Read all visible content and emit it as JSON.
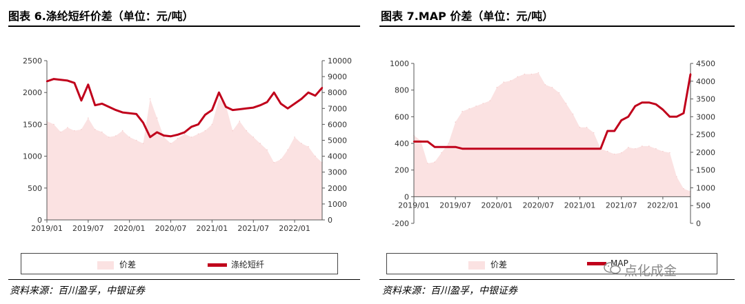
{
  "left": {
    "title": "图表 6.涤纶短纤价差（单位：元/吨）",
    "source": "资料来源：百川盈孚，中银证券",
    "legend": {
      "area": "价差",
      "line": "涤纶短纤"
    },
    "chart_data": {
      "type": "area+line",
      "x_ticks": [
        "2019/01",
        "2019/07",
        "2020/01",
        "2020/07",
        "2021/01",
        "2021/07",
        "2022/01"
      ],
      "y_left": {
        "ticks": [
          0,
          500,
          1000,
          1500,
          2000,
          2500
        ],
        "lim": [
          0,
          2500
        ]
      },
      "y_right": {
        "ticks": [
          0,
          1000,
          2000,
          3000,
          4000,
          5000,
          6000,
          7000,
          8000,
          9000,
          10000
        ],
        "lim": [
          0,
          10000
        ]
      },
      "x_range": [
        "2019/01",
        "2022/05"
      ],
      "series": [
        {
          "name": "价差",
          "axis": "left",
          "kind": "area",
          "x": [
            "2019/01",
            "2019/02",
            "2019/03",
            "2019/04",
            "2019/05",
            "2019/06",
            "2019/07",
            "2019/08",
            "2019/09",
            "2019/10",
            "2019/11",
            "2019/12",
            "2020/01",
            "2020/02",
            "2020/03",
            "2020/04",
            "2020/05",
            "2020/06",
            "2020/07",
            "2020/08",
            "2020/09",
            "2020/10",
            "2020/11",
            "2020/12",
            "2021/01",
            "2021/02",
            "2021/03",
            "2021/04",
            "2021/05",
            "2021/06",
            "2021/07",
            "2021/08",
            "2021/09",
            "2021/10",
            "2021/11",
            "2021/12",
            "2022/01",
            "2022/02",
            "2022/03",
            "2022/04",
            "2022/05"
          ],
          "values": [
            1550,
            1500,
            1380,
            1450,
            1400,
            1420,
            1600,
            1420,
            1380,
            1300,
            1320,
            1400,
            1300,
            1250,
            1200,
            1900,
            1600,
            1300,
            1200,
            1280,
            1350,
            1300,
            1350,
            1400,
            1500,
            1900,
            1800,
            1400,
            1550,
            1400,
            1300,
            1200,
            1100,
            900,
            950,
            1100,
            1300,
            1200,
            1150,
            1000,
            900
          ]
        },
        {
          "name": "涤纶短纤",
          "axis": "right",
          "kind": "line",
          "x": [
            "2019/01",
            "2019/02",
            "2019/03",
            "2019/04",
            "2019/05",
            "2019/06",
            "2019/07",
            "2019/08",
            "2019/09",
            "2019/10",
            "2019/11",
            "2019/12",
            "2020/01",
            "2020/02",
            "2020/03",
            "2020/04",
            "2020/05",
            "2020/06",
            "2020/07",
            "2020/08",
            "2020/09",
            "2020/10",
            "2020/11",
            "2020/12",
            "2021/01",
            "2021/02",
            "2021/03",
            "2021/04",
            "2021/05",
            "2021/06",
            "2021/07",
            "2021/08",
            "2021/09",
            "2021/10",
            "2021/11",
            "2021/12",
            "2022/01",
            "2022/02",
            "2022/03",
            "2022/04",
            "2022/05"
          ],
          "values": [
            8700,
            8850,
            8800,
            8750,
            8600,
            7500,
            8500,
            7200,
            7300,
            7100,
            6900,
            6750,
            6700,
            6650,
            6100,
            5200,
            5500,
            5300,
            5250,
            5350,
            5500,
            5850,
            6000,
            6600,
            6900,
            8000,
            7100,
            6900,
            6950,
            7000,
            7050,
            7200,
            7400,
            8000,
            7300,
            7000,
            7300,
            7600,
            8000,
            7800,
            8300
          ]
        }
      ]
    }
  },
  "right": {
    "title": "图表 7.MAP 价差（单位：元/吨）",
    "source": "资料来源：百川盈孚，中银证券",
    "legend": {
      "area": "价差",
      "line": "MAP"
    },
    "watermark": "点化成金",
    "chart_data": {
      "type": "area+line",
      "x_ticks": [
        "2019/01",
        "2019/07",
        "2020/01",
        "2020/07",
        "2021/01",
        "2021/07",
        "2022/01"
      ],
      "y_left": {
        "ticks": [
          -200,
          0,
          200,
          400,
          600,
          800,
          1000
        ],
        "lim": [
          -200,
          1000
        ]
      },
      "y_right": {
        "ticks": [
          0,
          500,
          1000,
          1500,
          2000,
          2500,
          3000,
          3500,
          4000,
          4500
        ],
        "lim": [
          0,
          4500
        ]
      },
      "x_range": [
        "2019/01",
        "2022/05"
      ],
      "series": [
        {
          "name": "价差",
          "axis": "left",
          "kind": "area",
          "x": [
            "2019/01",
            "2019/02",
            "2019/03",
            "2019/04",
            "2019/05",
            "2019/06",
            "2019/07",
            "2019/08",
            "2019/09",
            "2019/10",
            "2019/11",
            "2019/12",
            "2020/01",
            "2020/02",
            "2020/03",
            "2020/04",
            "2020/05",
            "2020/06",
            "2020/07",
            "2020/08",
            "2020/09",
            "2020/10",
            "2020/11",
            "2020/12",
            "2021/01",
            "2021/02",
            "2021/03",
            "2021/04",
            "2021/05",
            "2021/06",
            "2021/07",
            "2021/08",
            "2021/09",
            "2021/10",
            "2021/11",
            "2021/12",
            "2022/01",
            "2022/02",
            "2022/03",
            "2022/04",
            "2022/05"
          ],
          "values": [
            460,
            420,
            250,
            260,
            330,
            400,
            560,
            640,
            660,
            680,
            700,
            720,
            820,
            860,
            870,
            900,
            920,
            920,
            930,
            840,
            820,
            780,
            700,
            620,
            520,
            520,
            480,
            360,
            340,
            320,
            330,
            370,
            360,
            380,
            380,
            360,
            340,
            330,
            150,
            60,
            40
          ]
        },
        {
          "name": "MAP",
          "axis": "right",
          "kind": "line",
          "x": [
            "2019/01",
            "2019/02",
            "2019/03",
            "2019/04",
            "2019/05",
            "2019/06",
            "2019/07",
            "2019/08",
            "2019/09",
            "2019/10",
            "2019/11",
            "2019/12",
            "2020/01",
            "2020/02",
            "2020/03",
            "2020/04",
            "2020/05",
            "2020/06",
            "2020/07",
            "2020/08",
            "2020/09",
            "2020/10",
            "2020/11",
            "2020/12",
            "2021/01",
            "2021/02",
            "2021/03",
            "2021/04",
            "2021/05",
            "2021/06",
            "2021/07",
            "2021/08",
            "2021/09",
            "2021/10",
            "2021/11",
            "2021/12",
            "2022/01",
            "2022/02",
            "2022/03",
            "2022/04",
            "2022/05"
          ],
          "values": [
            2300,
            2300,
            2300,
            2150,
            2150,
            2150,
            2150,
            2100,
            2100,
            2100,
            2100,
            2100,
            2100,
            2100,
            2100,
            2100,
            2100,
            2100,
            2100,
            2100,
            2100,
            2100,
            2100,
            2100,
            2100,
            2100,
            2100,
            2100,
            2600,
            2600,
            2900,
            3000,
            3300,
            3400,
            3400,
            3350,
            3200,
            3000,
            3000,
            3100,
            4200
          ]
        }
      ]
    }
  }
}
